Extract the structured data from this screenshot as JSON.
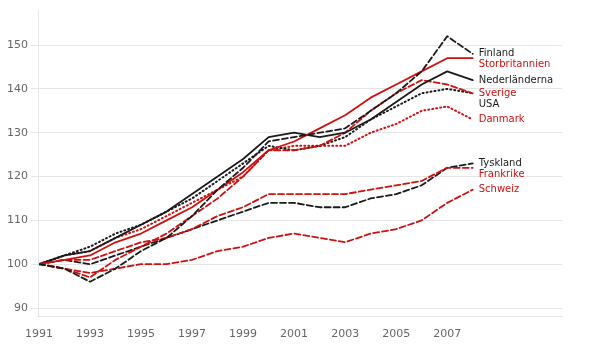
{
  "chart_data": {
    "type": "line",
    "x": [
      1991,
      1992,
      1993,
      1994,
      1995,
      1996,
      1997,
      1998,
      1999,
      2000,
      2001,
      2002,
      2003,
      2004,
      2005,
      2006,
      2007,
      2008
    ],
    "series": [
      {
        "name": "Finland",
        "color": "#1a1a1a",
        "line_style": "dashed",
        "values": [
          100,
          99,
          96,
          99,
          103,
          106,
          111,
          117,
          122,
          128,
          129,
          130,
          131,
          135,
          139,
          144,
          152,
          148
        ]
      },
      {
        "name": "Storbritannien",
        "color": "#cc1111",
        "line_style": "solid",
        "values": [
          100,
          101,
          102,
          105,
          107,
          110,
          113,
          117,
          121,
          126,
          128,
          131,
          134,
          138,
          141,
          144,
          147,
          147
        ]
      },
      {
        "name": "Nederländerna",
        "color": "#1a1a1a",
        "line_style": "solid",
        "values": [
          100,
          102,
          103,
          106,
          109,
          112,
          116,
          120,
          124,
          129,
          130,
          129,
          130,
          133,
          137,
          141,
          144,
          142
        ]
      },
      {
        "name": "Sverige",
        "color": "#cc1111",
        "line_style": "dashed",
        "values": [
          100,
          99,
          97,
          101,
          104,
          107,
          111,
          115,
          120,
          126,
          126,
          127,
          130,
          135,
          139,
          142,
          141,
          139
        ]
      },
      {
        "name": "USA",
        "color": "#1a1a1a",
        "line_style": "dotted",
        "values": [
          100,
          102,
          104,
          107,
          109,
          112,
          115,
          119,
          123,
          127,
          126,
          127,
          129,
          133,
          136,
          139,
          140,
          139
        ]
      },
      {
        "name": "Danmark",
        "color": "#cc1111",
        "line_style": "dotted",
        "values": [
          100,
          102,
          103,
          106,
          108,
          111,
          114,
          117,
          120,
          126,
          127,
          127,
          127,
          130,
          132,
          135,
          136,
          133
        ]
      },
      {
        "name": "Frankrike",
        "color": "#cc1111",
        "line_style": "dashed",
        "values": [
          100,
          101,
          101,
          103,
          105,
          106,
          108,
          111,
          113,
          116,
          116,
          116,
          116,
          117,
          118,
          119,
          122,
          122
        ]
      },
      {
        "name": "Tyskland",
        "color": "#1a1a1a",
        "line_style": "dashed",
        "values": [
          100,
          101,
          100,
          102,
          104,
          106,
          108,
          110,
          112,
          114,
          114,
          113,
          113,
          115,
          116,
          118,
          122,
          123
        ]
      },
      {
        "name": "Schweiz",
        "color": "#cc1111",
        "line_style": "dashed",
        "values": [
          100,
          99,
          98,
          99,
          100,
          100,
          101,
          103,
          104,
          106,
          107,
          106,
          105,
          107,
          108,
          110,
          114,
          117
        ]
      }
    ],
    "xlim": [
      1991,
      2011.5
    ],
    "xticks": [
      1991,
      1993,
      1995,
      1997,
      1999,
      2001,
      2003,
      2005,
      2007
    ],
    "ylim": [
      88,
      158
    ],
    "yticks": [
      90,
      100,
      110,
      120,
      130,
      140,
      150
    ],
    "grid": "y"
  }
}
